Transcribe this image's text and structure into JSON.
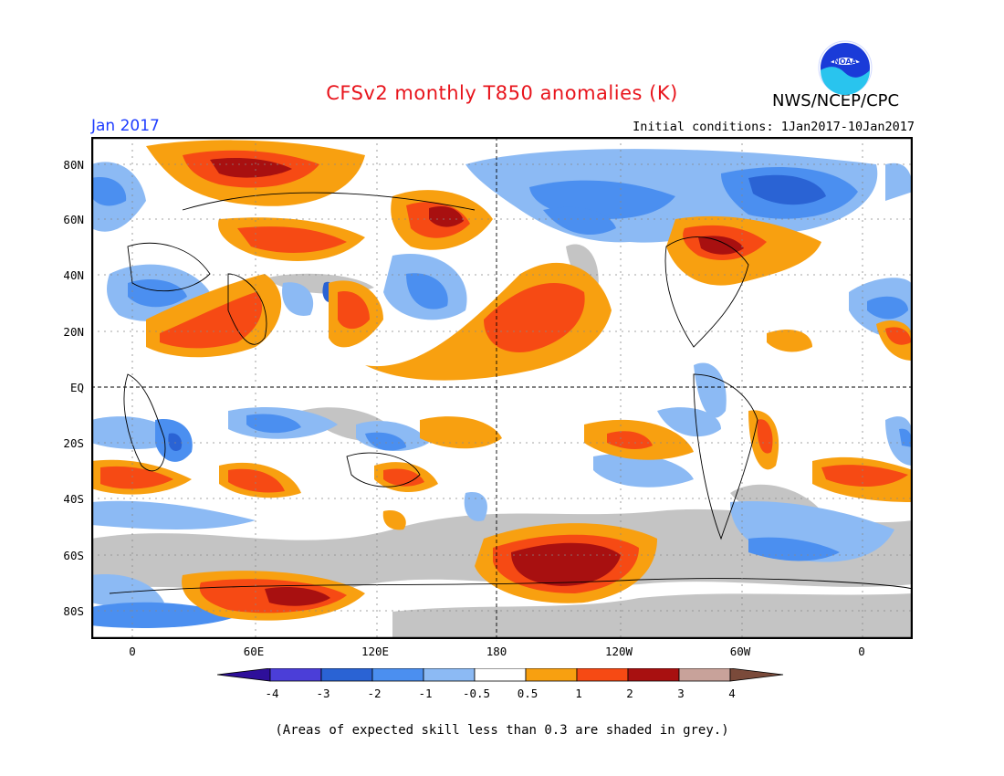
{
  "header": {
    "title": "CFSv2 monthly T850 anomalies (K)",
    "agency": "NWS/NCEP/CPC",
    "logo_text": "NOAA",
    "month": "Jan 2017",
    "initial_conditions": "Initial conditions: 1Jan2017-10Jan2017"
  },
  "map": {
    "lat_labels": [
      "80N",
      "60N",
      "40N",
      "20N",
      "EQ",
      "20S",
      "40S",
      "60S",
      "80S"
    ],
    "lon_labels": [
      "0",
      "60E",
      "120E",
      "180",
      "120W",
      "60W",
      "0"
    ]
  },
  "colorbar": {
    "labels": [
      "-4",
      "-3",
      "-2",
      "-1",
      "-0.5",
      "0.5",
      "1",
      "2",
      "3",
      "4"
    ],
    "colors": [
      "#2e0f9a",
      "#4b3ed8",
      "#2a63d4",
      "#4b8ff0",
      "#8cbaf4",
      "#ffffff",
      "#f8a010",
      "#f64a14",
      "#a81010",
      "#c8a29a",
      "#7a4a3a"
    ],
    "grey": "#c4c4c4"
  },
  "note": "(Areas of expected skill less than 0.3 are shaded in grey.)"
}
